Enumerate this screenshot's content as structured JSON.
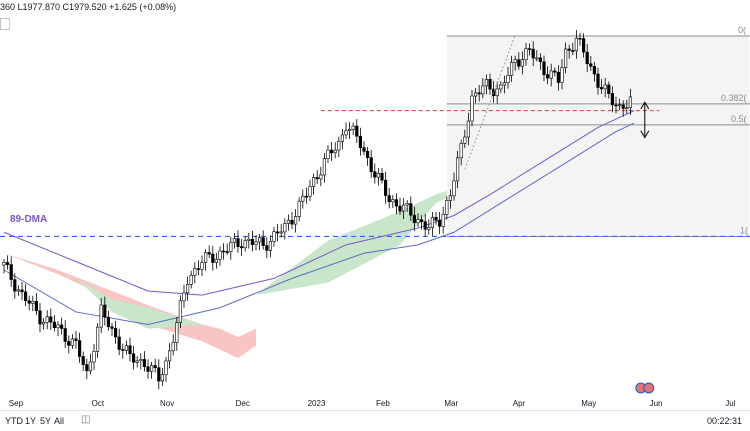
{
  "ohlc_text": "360 L1977.870 C1979.520 +1.625 (+0.08%)",
  "toolbar": {
    "ranges": [
      "YTD",
      "1Y",
      "5Y",
      "All"
    ],
    "clock": "00:22:31"
  },
  "colors": {
    "bull": "#000000",
    "bear": "#000000",
    "kumo_bull": "#c8e6c9",
    "kumo_bear": "#f8c4c4",
    "dma": "#7e57c2",
    "ma2": "#5c6bc0",
    "fib": "#8c8c8c",
    "red_dash": "#e53935",
    "blue_dash": "#2962ff"
  },
  "annotations": {
    "dma_label": "89-DMA",
    "fib_0": "0(",
    "fib_0382": "0.382(",
    "fib_05": "0.5(",
    "fib_1": "1("
  },
  "chart_data": {
    "type": "candlestick",
    "title": "",
    "x_ticks": [
      "Sep",
      "Oct",
      "Nov",
      "Dec",
      "2023",
      "Feb",
      "Mar",
      "Apr",
      "May",
      "Jun",
      "Jul"
    ],
    "ylim": [
      1615,
      2080
    ],
    "fib_levels": [
      {
        "label": "0(",
        "price": 2049
      },
      {
        "label": "0.382(",
        "price": 1968
      },
      {
        "label": "0.5(",
        "price": 1943
      },
      {
        "label": "1(",
        "price": 1810
      }
    ],
    "horizontal_lines": [
      {
        "name": "red-dashed",
        "price": 1960
      },
      {
        "name": "blue-dashed",
        "price": 1810
      }
    ],
    "anchors": [
      [
        0,
        1775
      ],
      [
        5,
        1740
      ],
      [
        10,
        1715
      ],
      [
        15,
        1700
      ],
      [
        20,
        1680
      ],
      [
        23,
        1645
      ],
      [
        27,
        1720
      ],
      [
        31,
        1690
      ],
      [
        35,
        1665
      ],
      [
        39,
        1660
      ],
      [
        43,
        1640
      ],
      [
        45,
        1660
      ],
      [
        48,
        1705
      ],
      [
        51,
        1760
      ],
      [
        55,
        1780
      ],
      [
        60,
        1790
      ],
      [
        66,
        1805
      ],
      [
        72,
        1800
      ],
      [
        78,
        1820
      ],
      [
        84,
        1860
      ],
      [
        89,
        1900
      ],
      [
        93,
        1920
      ],
      [
        95,
        1945
      ],
      [
        99,
        1920
      ],
      [
        103,
        1885
      ],
      [
        107,
        1855
      ],
      [
        111,
        1843
      ],
      [
        115,
        1830
      ],
      [
        118,
        1820
      ],
      [
        121,
        1830
      ],
      [
        124,
        1860
      ],
      [
        127,
        1915
      ],
      [
        130,
        1975
      ],
      [
        134,
        1990
      ],
      [
        138,
        1985
      ],
      [
        142,
        2020
      ],
      [
        146,
        2030
      ],
      [
        150,
        2010
      ],
      [
        154,
        1995
      ],
      [
        156,
        2030
      ],
      [
        159,
        2045
      ],
      [
        162,
        2020
      ],
      [
        165,
        1995
      ],
      [
        168,
        1975
      ],
      [
        171,
        1965
      ],
      [
        174,
        1970
      ]
    ],
    "ichimoku_cloud_span_a": [
      [
        0,
        1790
      ],
      [
        20,
        1760
      ],
      [
        30,
        1720
      ],
      [
        40,
        1700
      ],
      [
        55,
        1705
      ],
      [
        70,
        1740
      ],
      [
        90,
        1805
      ],
      [
        110,
        1840
      ],
      [
        120,
        1860
      ],
      [
        130,
        1875
      ],
      [
        140,
        1905
      ],
      [
        155,
        1945
      ],
      [
        170,
        1975
      ],
      [
        178,
        1992
      ],
      [
        185,
        1980
      ]
    ],
    "ichimoku_cloud_span_b": [
      [
        0,
        1790
      ],
      [
        20,
        1760
      ],
      [
        30,
        1735
      ],
      [
        40,
        1725
      ],
      [
        55,
        1705
      ],
      [
        70,
        1740
      ],
      [
        90,
        1755
      ],
      [
        110,
        1800
      ],
      [
        120,
        1850
      ],
      [
        130,
        1870
      ],
      [
        140,
        1885
      ],
      [
        155,
        1925
      ],
      [
        170,
        1945
      ],
      [
        178,
        1952
      ],
      [
        185,
        1950
      ]
    ],
    "ichimoku_cloud_span_bear": [
      [
        0,
        1790
      ],
      [
        15,
        1770
      ],
      [
        30,
        1745
      ],
      [
        40,
        1728
      ],
      [
        55,
        1705
      ],
      [
        60,
        1700
      ],
      [
        65,
        1690
      ],
      [
        70,
        1700
      ]
    ],
    "ichimoku_cloud_span_bear_low": [
      [
        0,
        1790
      ],
      [
        15,
        1765
      ],
      [
        30,
        1735
      ],
      [
        40,
        1705
      ],
      [
        55,
        1685
      ],
      [
        60,
        1675
      ],
      [
        65,
        1665
      ],
      [
        70,
        1680
      ]
    ],
    "dma_89": [
      [
        0,
        1815
      ],
      [
        20,
        1780
      ],
      [
        40,
        1745
      ],
      [
        55,
        1740
      ],
      [
        75,
        1760
      ],
      [
        95,
        1800
      ],
      [
        115,
        1820
      ],
      [
        125,
        1835
      ],
      [
        135,
        1860
      ],
      [
        150,
        1900
      ],
      [
        165,
        1940
      ],
      [
        175,
        1960
      ]
    ],
    "ma_2": [
      [
        0,
        1770
      ],
      [
        20,
        1720
      ],
      [
        40,
        1705
      ],
      [
        60,
        1725
      ],
      [
        80,
        1760
      ],
      [
        100,
        1790
      ],
      [
        115,
        1800
      ],
      [
        125,
        1815
      ],
      [
        140,
        1855
      ],
      [
        155,
        1895
      ],
      [
        170,
        1935
      ],
      [
        175,
        1945
      ]
    ]
  }
}
